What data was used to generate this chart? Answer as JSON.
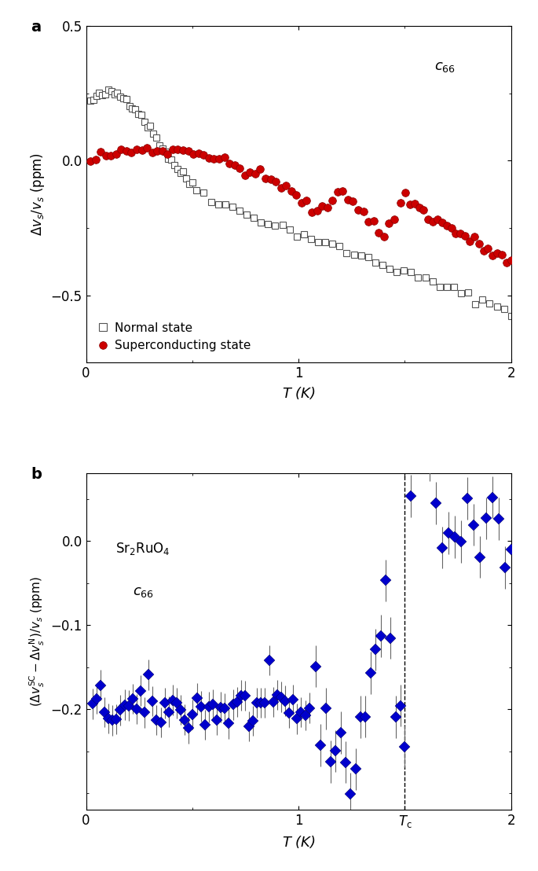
{
  "panel_a": {
    "ylabel": "$\\Delta v_s/v_s$ (ppm)",
    "xlabel": "$T$ (K)",
    "xlim": [
      0,
      2
    ],
    "ylim": [
      -0.75,
      0.5
    ],
    "yticks": [
      -0.5,
      0,
      0.5
    ],
    "xticks": [
      0,
      1,
      2
    ],
    "normal_color": "#555555",
    "sc_color": "#cc0000",
    "panel_label": "a"
  },
  "panel_b": {
    "ylabel": "$(\\Delta v_s^{\\mathrm{SC}} - \\Delta v_s^{\\mathrm{N}})/v_s$ (ppm)",
    "xlabel": "$T$ (K)",
    "xlim": [
      0,
      2
    ],
    "ylim": [
      -0.32,
      0.08
    ],
    "yticks": [
      -0.2,
      -0.1,
      0.0
    ],
    "xticks": [
      0,
      1,
      1.5,
      2
    ],
    "xticklabels": [
      "0",
      "1",
      "$T_\\mathrm{c}$",
      "2"
    ],
    "Tc": 1.5,
    "diamond_color": "#0000cc",
    "panel_label": "b",
    "dashed_line_x": 1.5
  }
}
